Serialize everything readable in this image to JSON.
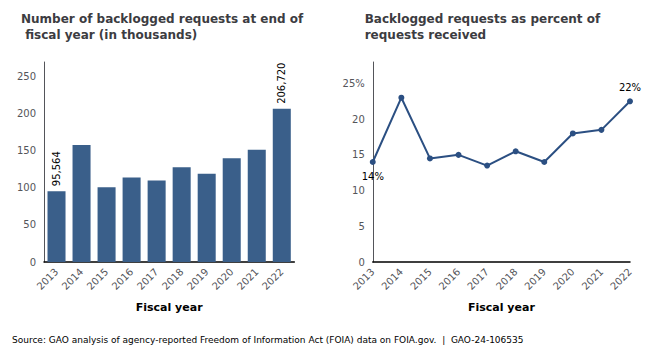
{
  "chart_data": [
    {
      "type": "bar",
      "title": "Number of backlogged requests at end of fiscal year (in thousands)",
      "x_label": "Fiscal year",
      "categories": [
        "2013",
        "2014",
        "2015",
        "2016",
        "2017",
        "2018",
        "2019",
        "2020",
        "2021",
        "2022"
      ],
      "values": [
        95.564,
        158.0,
        101.0,
        114.0,
        110.0,
        128.0,
        119.0,
        140.0,
        151.5,
        206.72
      ],
      "color": "#3A5F8A",
      "ylim": [
        0,
        270
      ],
      "yticks": [
        0,
        50,
        100,
        150,
        200,
        250
      ],
      "grid": false,
      "annotations": [
        {
          "text": "95,564",
          "x": "2013"
        },
        {
          "text": "206,720",
          "x": "2022"
        },
        {
          "text": "Source: GAO analysis of agency-reported Freedom of Information Act (FOIA) data on FOIA.gov.  |  GAO-24-106535"
        }
      ]
    },
    {
      "type": "line",
      "title": "Backlogged requests as percent of requests received",
      "x_label": "Fiscal year",
      "categories": [
        "2013",
        "2014",
        "2015",
        "2016",
        "2017",
        "2018",
        "2019",
        "2020",
        "2021",
        "2022"
      ],
      "values": [
        14.0,
        23.0,
        14.5,
        15.0,
        13.5,
        15.5,
        14.0,
        18.0,
        18.5,
        22.5
      ],
      "color": "#2B4F82",
      "marker": "circle",
      "ylim": [
        0,
        28
      ],
      "yticks": [
        0,
        5,
        10,
        15,
        20,
        {
          "value": 25,
          "label": "25%"
        }
      ],
      "grid": false,
      "annotations": [
        {
          "text": "14%",
          "x": "2013"
        },
        {
          "text": "22%",
          "x": "2022"
        }
      ]
    }
  ]
}
